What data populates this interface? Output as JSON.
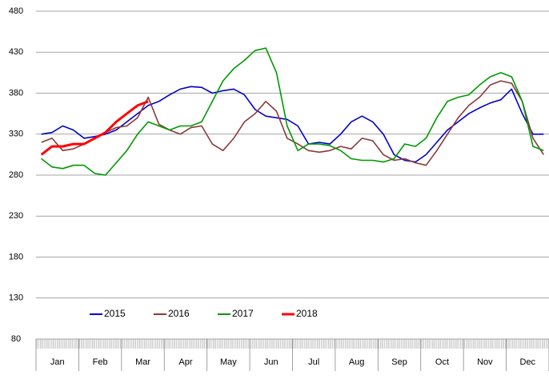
{
  "chart_data": {
    "type": "line",
    "categories": [
      null,
      "Jan",
      null,
      null,
      null,
      "Feb",
      null,
      null,
      null,
      "Mar",
      null,
      null,
      null,
      "Apr",
      null,
      null,
      null,
      "May",
      null,
      null,
      null,
      "Jun",
      null,
      null,
      null,
      "Jul",
      null,
      null,
      null,
      "Aug",
      null,
      null,
      null,
      "Sep",
      null,
      null,
      null,
      "Oct",
      null,
      null,
      null,
      "Nov",
      null,
      null,
      null,
      "Dec",
      null,
      null
    ],
    "series": [
      {
        "name": "2015",
        "color": "#0000cc",
        "values": [
          330,
          332,
          340,
          335,
          325,
          327,
          330,
          335,
          345,
          355,
          365,
          370,
          378,
          385,
          388,
          387,
          380,
          383,
          385,
          378,
          360,
          352,
          350,
          348,
          340,
          318,
          320,
          318,
          330,
          345,
          352,
          345,
          330,
          305,
          298,
          296,
          305,
          320,
          335,
          345,
          355,
          362,
          368,
          372,
          385,
          355,
          330,
          330
        ]
      },
      {
        "name": "2016",
        "color": "#8b3a3a",
        "values": [
          320,
          325,
          310,
          312,
          318,
          325,
          332,
          338,
          340,
          350,
          375,
          342,
          335,
          330,
          338,
          340,
          318,
          310,
          325,
          345,
          355,
          370,
          358,
          325,
          318,
          310,
          308,
          310,
          315,
          312,
          325,
          322,
          305,
          298,
          300,
          295,
          292,
          310,
          330,
          350,
          365,
          375,
          390,
          395,
          392,
          370,
          325,
          305
        ]
      },
      {
        "name": "2017",
        "color": "#009900",
        "values": [
          300,
          290,
          288,
          292,
          292,
          282,
          280,
          295,
          310,
          330,
          345,
          340,
          335,
          340,
          340,
          345,
          370,
          395,
          410,
          420,
          432,
          435,
          405,
          340,
          310,
          318,
          318,
          316,
          310,
          300,
          298,
          298,
          296,
          300,
          318,
          315,
          325,
          350,
          370,
          375,
          378,
          390,
          400,
          405,
          400,
          370,
          315,
          310
        ]
      },
      {
        "name": "2018",
        "color": "#ff0000",
        "values": [
          305,
          315,
          315,
          318,
          318,
          325,
          332,
          345,
          355,
          365,
          370,
          null,
          null,
          null,
          null,
          null,
          null,
          null,
          null,
          null,
          null,
          null,
          null,
          null,
          null,
          null,
          null,
          null,
          null,
          null,
          null,
          null,
          null,
          null,
          null,
          null,
          null,
          null,
          null,
          null,
          null,
          null,
          null,
          null,
          null,
          null,
          null,
          null
        ]
      }
    ],
    "ylim": [
      80,
      480
    ],
    "yticks": [
      80,
      130,
      180,
      230,
      280,
      330,
      380,
      430,
      480
    ],
    "grid": true
  }
}
